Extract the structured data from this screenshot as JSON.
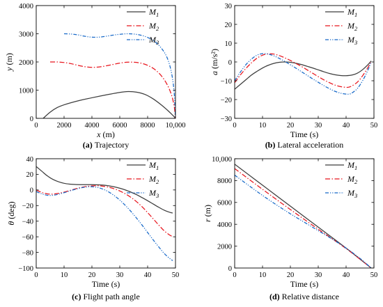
{
  "chart_data": [
    {
      "id": "a",
      "type": "line",
      "caption_tag": "(a)",
      "caption_text": "Trajectory",
      "xlabel": "x (m)",
      "ylabel": "y (m)",
      "xlim": [
        0,
        10000
      ],
      "ylim": [
        0,
        4000
      ],
      "xticks": [
        0,
        2000,
        4000,
        6000,
        8000,
        10000
      ],
      "xtick_labels": [
        "0",
        "2000",
        "4000",
        "6000",
        "8000",
        "10,000"
      ],
      "yticks": [
        0,
        1000,
        2000,
        3000,
        4000
      ],
      "ytick_labels": [
        "0",
        "1000",
        "2000",
        "3000",
        "4000"
      ],
      "legend_position": "top-right",
      "series": [
        {
          "name": "M1",
          "x": [
            500,
            1000,
            1500,
            2000,
            3000,
            4000,
            5000,
            6000,
            6600,
            7200,
            7800,
            8400,
            9000,
            9400,
            9700,
            9900,
            10000
          ],
          "y": [
            0,
            220,
            380,
            480,
            620,
            730,
            830,
            920,
            950,
            930,
            850,
            690,
            470,
            300,
            160,
            60,
            0
          ]
        },
        {
          "name": "M2",
          "x": [
            1000,
            1500,
            2000,
            2500,
            3000,
            3500,
            4000,
            4500,
            5000,
            5500,
            6000,
            6500,
            7000,
            7500,
            8000,
            8500,
            9000,
            9400,
            9700,
            9900,
            10000
          ],
          "y": [
            2000,
            2000,
            1980,
            1940,
            1880,
            1830,
            1810,
            1820,
            1860,
            1910,
            1960,
            1990,
            1990,
            1960,
            1880,
            1740,
            1500,
            1200,
            850,
            450,
            0
          ]
        },
        {
          "name": "M3",
          "x": [
            2000,
            2500,
            3000,
            3500,
            4000,
            4500,
            5000,
            5500,
            6000,
            6500,
            7000,
            7500,
            8000,
            8500,
            9000,
            9400,
            9700,
            9900,
            10000
          ],
          "y": [
            3000,
            2990,
            2960,
            2910,
            2880,
            2880,
            2910,
            2950,
            2980,
            3000,
            2990,
            2950,
            2870,
            2730,
            2480,
            2150,
            1650,
            950,
            0
          ]
        }
      ]
    },
    {
      "id": "b",
      "type": "line",
      "caption_tag": "(b)",
      "caption_text": "Lateral acceleration",
      "xlabel": "Time (s)",
      "ylabel": "a (m/s²)",
      "xlim": [
        0,
        50
      ],
      "ylim": [
        -30,
        30
      ],
      "xticks": [
        0,
        10,
        20,
        30,
        40,
        50
      ],
      "xtick_labels": [
        "0",
        "10",
        "20",
        "30",
        "40",
        "50"
      ],
      "yticks": [
        -30,
        -20,
        -10,
        0,
        10,
        20,
        30
      ],
      "ytick_labels": [
        "−30",
        "−20",
        "−10",
        "0",
        "10",
        "20",
        "30"
      ],
      "legend_position": "top-right",
      "series": [
        {
          "name": "M1",
          "x": [
            0,
            2,
            4,
            6,
            8,
            10,
            12,
            14,
            16,
            18,
            20,
            22,
            24,
            26,
            28,
            30,
            32,
            34,
            36,
            38,
            40,
            42,
            44,
            46,
            48,
            49
          ],
          "y": [
            -14.5,
            -12,
            -9.5,
            -7,
            -5,
            -3.2,
            -1.8,
            -0.8,
            -0.2,
            0,
            -0.2,
            -0.7,
            -1.4,
            -2.3,
            -3.2,
            -4.2,
            -5.2,
            -6.1,
            -6.8,
            -7.2,
            -7.3,
            -7,
            -6,
            -4,
            -1.2,
            0.5
          ]
        },
        {
          "name": "M2",
          "x": [
            0,
            2,
            4,
            6,
            8,
            10,
            12,
            14,
            16,
            18,
            20,
            22,
            24,
            26,
            28,
            30,
            32,
            34,
            36,
            38,
            40,
            41,
            42,
            44,
            46,
            48,
            49
          ],
          "y": [
            -11,
            -7,
            -3.5,
            -0.5,
            2,
            3.6,
            4.3,
            4.2,
            3.4,
            2.2,
            0.8,
            -0.8,
            -2.4,
            -4.2,
            -6,
            -7.8,
            -9.5,
            -11,
            -12.3,
            -13.1,
            -13.5,
            -13.4,
            -12.8,
            -10.8,
            -7.2,
            -2.5,
            0.5
          ]
        },
        {
          "name": "M3",
          "x": [
            0,
            2,
            4,
            6,
            8,
            10,
            12,
            14,
            16,
            18,
            20,
            22,
            24,
            26,
            28,
            30,
            32,
            34,
            36,
            38,
            40,
            41,
            42,
            44,
            46,
            48,
            49
          ],
          "y": [
            -10,
            -5.5,
            -1.5,
            1.5,
            3.6,
            4.4,
            4.2,
            3.3,
            1.9,
            0.3,
            -1.5,
            -3.3,
            -5.2,
            -7.1,
            -9,
            -10.8,
            -12.6,
            -14.2,
            -15.6,
            -16.6,
            -17.1,
            -17.1,
            -16.6,
            -14.2,
            -9.8,
            -3.8,
            0
          ]
        }
      ]
    },
    {
      "id": "c",
      "type": "line",
      "caption_tag": "(c)",
      "caption_text": "Flight path angle",
      "xlabel": "Time (s)",
      "ylabel": "θ (deg)",
      "xlim": [
        0,
        50
      ],
      "ylim": [
        -100,
        40
      ],
      "xticks": [
        0,
        10,
        20,
        30,
        40,
        50
      ],
      "xtick_labels": [
        "0",
        "10",
        "20",
        "30",
        "40",
        "50"
      ],
      "yticks": [
        -100,
        -80,
        -60,
        -40,
        -20,
        0,
        20,
        40
      ],
      "ytick_labels": [
        "−100",
        "−80",
        "−60",
        "−40",
        "−20",
        "0",
        "20",
        "40"
      ],
      "legend_position": "top-right",
      "series": [
        {
          "name": "M1",
          "x": [
            0,
            2,
            4,
            6,
            8,
            10,
            12,
            14,
            16,
            18,
            20,
            22,
            24,
            26,
            28,
            30,
            32,
            34,
            36,
            38,
            40,
            42,
            44,
            46,
            48,
            49
          ],
          "y": [
            30,
            24,
            18,
            13.5,
            10.5,
            8.5,
            7.5,
            7,
            6.8,
            6.8,
            6.8,
            6.6,
            6.2,
            5.3,
            4,
            2.2,
            0,
            -2.8,
            -6,
            -9.8,
            -13.8,
            -18,
            -22.2,
            -26,
            -28.7,
            -29.5
          ]
        },
        {
          "name": "M2",
          "x": [
            0,
            2,
            4,
            6,
            8,
            10,
            12,
            14,
            16,
            18,
            20,
            22,
            24,
            26,
            28,
            30,
            32,
            34,
            36,
            38,
            40,
            42,
            44,
            46,
            48,
            49
          ],
          "y": [
            0,
            -3.2,
            -5,
            -5.3,
            -4.4,
            -2.8,
            -0.8,
            1.3,
            3.1,
            4.5,
            5.2,
            5.4,
            4.8,
            3.5,
            1.5,
            -1.3,
            -5,
            -9.5,
            -15,
            -21.5,
            -29,
            -37,
            -45,
            -52.5,
            -58,
            -59.5
          ]
        },
        {
          "name": "M3",
          "x": [
            0,
            2,
            4,
            6,
            8,
            10,
            12,
            14,
            16,
            18,
            20,
            22,
            24,
            26,
            28,
            30,
            32,
            34,
            36,
            38,
            40,
            42,
            44,
            46,
            48,
            49
          ],
          "y": [
            -2,
            -5,
            -6.8,
            -6.8,
            -5.5,
            -3.5,
            -1.3,
            0.8,
            2.6,
            3.8,
            4.1,
            3.2,
            1,
            -2.5,
            -7.2,
            -13,
            -19.8,
            -27.5,
            -36,
            -45,
            -54.5,
            -64,
            -73,
            -81.5,
            -88,
            -90.5
          ]
        }
      ]
    },
    {
      "id": "d",
      "type": "line",
      "caption_tag": "(d)",
      "caption_text": "Relative distance",
      "xlabel": "Time (s)",
      "ylabel": "r (m)",
      "xlim": [
        0,
        50
      ],
      "ylim": [
        0,
        10000
      ],
      "xticks": [
        0,
        10,
        20,
        30,
        40,
        50
      ],
      "xtick_labels": [
        "0",
        "10",
        "20",
        "30",
        "40",
        "50"
      ],
      "yticks": [
        0,
        2000,
        4000,
        6000,
        8000,
        10000
      ],
      "ytick_labels": [
        "0",
        "2000",
        "4000",
        "6000",
        "8000",
        "10,000"
      ],
      "legend_position": "top-right",
      "series": [
        {
          "name": "M1",
          "x": [
            0,
            10,
            20,
            30,
            40,
            49
          ],
          "y": [
            9500,
            7580,
            5660,
            3740,
            1820,
            0
          ]
        },
        {
          "name": "M2",
          "x": [
            0,
            10,
            20,
            30,
            40,
            49
          ],
          "y": [
            9100,
            7200,
            5350,
            3550,
            1780,
            0
          ]
        },
        {
          "name": "M3",
          "x": [
            0,
            5,
            10,
            15,
            20,
            25,
            30,
            35,
            40,
            45,
            49
          ],
          "y": [
            8500,
            7560,
            6640,
            5780,
            4960,
            4190,
            3420,
            2650,
            1820,
            880,
            0
          ]
        }
      ]
    }
  ],
  "styles": {
    "M1": {
      "color": "#3c3c3c",
      "dash": ""
    },
    "M2": {
      "color": "#e8141c",
      "dash": "7 2.5 1.5 2.5"
    },
    "M3": {
      "color": "#1668c8",
      "dash": "5 2 1.2 2 1.2 2"
    }
  }
}
